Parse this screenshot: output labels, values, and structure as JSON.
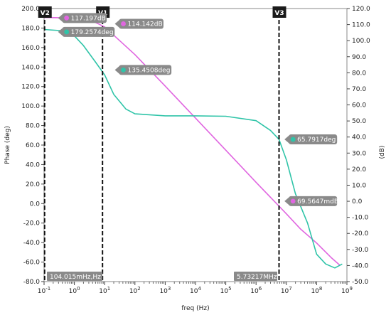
{
  "chart_data": {
    "type": "line",
    "xlabel": "freq (Hz)",
    "ylabel_left": "Phase (deg)",
    "ylabel_right": "(dB)",
    "x_scale": "log",
    "xlim": [
      0.1,
      1000000000
    ],
    "ylim_left": [
      -80,
      200
    ],
    "ylim_right": [
      -50,
      120
    ],
    "x_ticks": [
      {
        "value": 0.1,
        "label": "10-1"
      },
      {
        "value": 1,
        "label": "100"
      },
      {
        "value": 10,
        "label": "101"
      },
      {
        "value": 100,
        "label": "102"
      },
      {
        "value": 1000,
        "label": "103"
      },
      {
        "value": 10000,
        "label": "104"
      },
      {
        "value": 100000,
        "label": "105"
      },
      {
        "value": 1000000,
        "label": "106"
      },
      {
        "value": 10000000,
        "label": "107"
      },
      {
        "value": 100000000,
        "label": "108"
      },
      {
        "value": 1000000000,
        "label": "109"
      }
    ],
    "y_ticks_left": [
      "-80.0",
      "-60.0",
      "-40.0",
      "-20.0",
      "0.0",
      "20.0",
      "40.0",
      "60.0",
      "80.0",
      "100.0",
      "120.0",
      "140.0",
      "160.0",
      "180.0",
      "200.0"
    ],
    "y_ticks_right": [
      "-50.0",
      "-40.0",
      "-30.0",
      "-20.0",
      "-10.0",
      "0.0",
      "10.0",
      "20.0",
      "30.0",
      "40.0",
      "50.0",
      "60.0",
      "70.0",
      "80.0",
      "90.0",
      "100.0",
      "110.0",
      "120.0"
    ],
    "series": [
      {
        "axis": "right",
        "color": "#e066e0",
        "x": [
          0.1,
          1,
          3,
          10,
          100,
          1000,
          10000,
          100000,
          1000000,
          10000000,
          30000000,
          100000000,
          300000000,
          600000000
        ],
        "y": [
          114.4,
          114.1,
          113.3,
          108.6,
          91.3,
          71.7,
          51.8,
          31.8,
          11.8,
          -7.8,
          -17.4,
          -26.0,
          -35.0,
          -40.0
        ]
      },
      {
        "axis": "left",
        "color": "#2fc4a8",
        "x": [
          0.1,
          0.5,
          1,
          2,
          5,
          10,
          20,
          50,
          100,
          1000,
          10000,
          100000,
          1000000,
          3000000,
          5730000,
          10000000,
          20000000,
          50000000,
          100000000,
          200000000,
          400000000,
          700000000
        ],
        "y": [
          178.5,
          177.0,
          172.0,
          162.0,
          145.0,
          132.0,
          112.0,
          97.0,
          92.0,
          90.0,
          90.0,
          89.5,
          85.0,
          75.0,
          65.79,
          45.0,
          10.0,
          -20.0,
          -52.0,
          -62.0,
          -66.0,
          -62.0
        ]
      }
    ],
    "cursors": [
      {
        "name": "V2",
        "x": 0.104015
      },
      {
        "name": "V1",
        "x": 8.5
      },
      {
        "name": "V3",
        "x": 5732170
      }
    ],
    "markers": [
      {
        "label": "117.197dB",
        "x": 0.4,
        "y": 114.1,
        "axis": "right",
        "color": "#e066e0"
      },
      {
        "label": "114.142dB",
        "x": 30,
        "y": 110.5,
        "axis": "right",
        "color": "#e066e0"
      },
      {
        "label": "179.2574deg",
        "x": 0.4,
        "y": 176,
        "axis": "left",
        "color": "#2fc4a8"
      },
      {
        "label": "135.4508deg",
        "x": 30,
        "y": 137,
        "axis": "left",
        "color": "#2fc4a8"
      },
      {
        "label": "65.7917deg",
        "x": 12000000,
        "y": 65.79,
        "axis": "left",
        "color": "#2fc4a8"
      },
      {
        "label": "69.5647mdB",
        "x": 12000000,
        "y": 0.07,
        "axis": "right",
        "color": "#e066e0"
      }
    ],
    "cursor_readouts": [
      "104.015mHz,Hz",
      "5.73217MHz"
    ],
    "grid": false
  }
}
